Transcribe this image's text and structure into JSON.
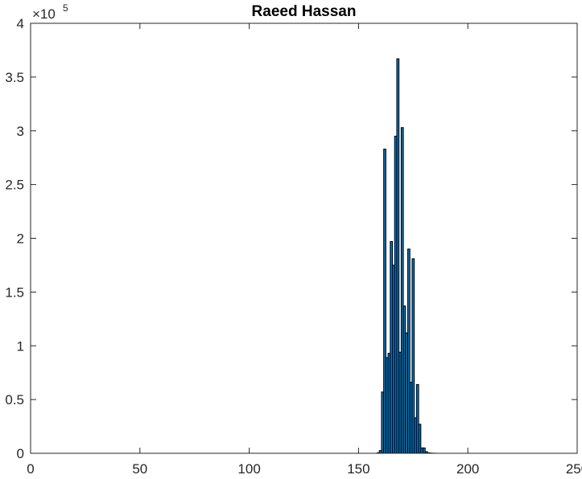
{
  "chart_data": {
    "type": "bar",
    "title": "Raeed Hassan",
    "xlabel": "",
    "ylabel": "",
    "xlim": [
      0,
      250
    ],
    "ylim": [
      0,
      400000
    ],
    "xticks": [
      0,
      50,
      100,
      150,
      200,
      250
    ],
    "yticks": [
      0,
      0.5,
      1,
      1.5,
      2,
      2.5,
      3,
      3.5,
      4
    ],
    "ytick_labels": [
      "0",
      "0.5",
      "1",
      "1.5",
      "2",
      "2.5",
      "3",
      "3.5",
      "4"
    ],
    "xtick_labels": [
      "0",
      "50",
      "100",
      "150",
      "200",
      "250"
    ],
    "y_exponent_label": {
      "base": "×10",
      "exponent": "5"
    },
    "grid": false,
    "bar_color": "#0072bd",
    "bar_edge_color": "#000000",
    "bar_width": 1,
    "x": [
      159,
      160,
      161,
      162,
      163,
      164,
      165,
      166,
      167,
      168,
      169,
      170,
      171,
      172,
      173,
      174,
      175,
      176,
      177,
      178,
      179,
      180,
      181,
      182,
      183,
      184,
      185
    ],
    "values": [
      500,
      2500,
      57000,
      283000,
      89000,
      93000,
      197000,
      175000,
      295000,
      367000,
      94000,
      303000,
      137000,
      112000,
      190000,
      66000,
      181000,
      33000,
      64000,
      27000,
      5000,
      5000,
      1500,
      500,
      200,
      100,
      50
    ]
  }
}
